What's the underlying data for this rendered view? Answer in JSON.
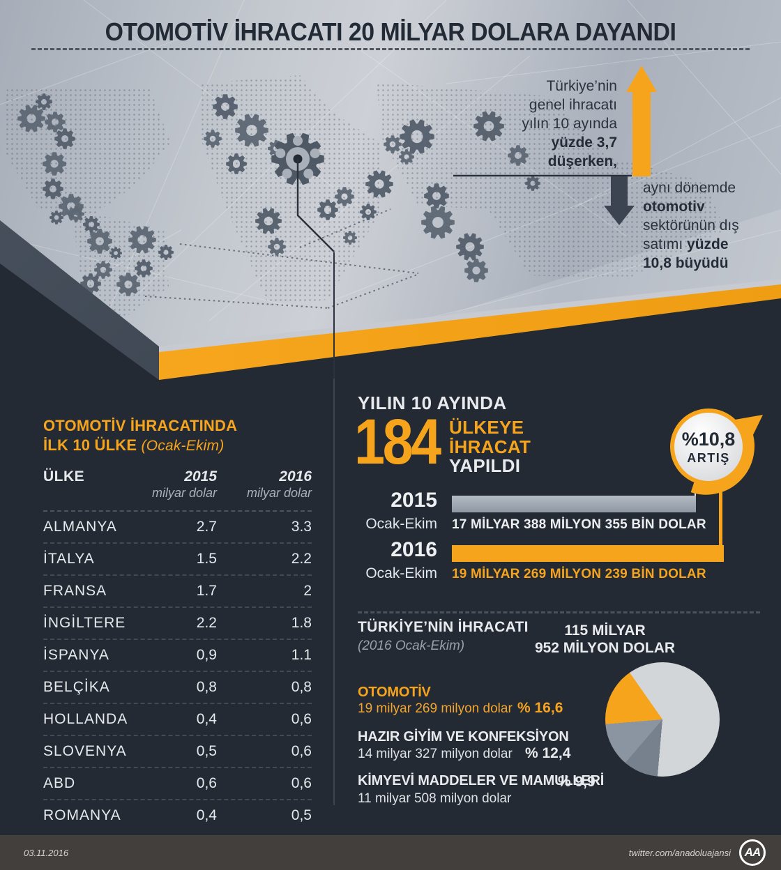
{
  "title": "OTOMOTİV İHRACATI 20 MİLYAR DOLARA DAYANDI",
  "colors": {
    "accent_orange": "#F7A41D",
    "background_navy": "#232A34",
    "surface_gray": "#BFC4CC",
    "bar_gray": "#9AA4B0",
    "footer_brown": "#423F3C"
  },
  "annotations": {
    "general": {
      "l1": "Türkiye’nin",
      "l2": "genel ihracatı",
      "l3": "yılın 10 ayında",
      "l4": "yüzde 3,7",
      "l5": "düşerken,"
    },
    "auto": {
      "l1": "aynı dönemde",
      "l2": "otomotiv",
      "l3": "sektörünün dış",
      "l4a": "satımı ",
      "l4b": "yüzde",
      "l5": "10,8 büyüdü"
    }
  },
  "top10": {
    "title_line1": "OTOMOTİV İHRACATINDA",
    "title_line2": "İLK 10 ÜLKE ",
    "title_note": "(Ocak-Ekim)",
    "col_country": "ÜLKE",
    "col_2015": "2015",
    "col_2016": "2016",
    "col_unit": "milyar dolar",
    "rows": [
      {
        "country": "ALMANYA",
        "v2015": "2.7",
        "v2016": "3.3"
      },
      {
        "country": "İTALYA",
        "v2015": "1.5",
        "v2016": "2.2"
      },
      {
        "country": "FRANSA",
        "v2015": "1.7",
        "v2016": "2"
      },
      {
        "country": "İNGİLTERE",
        "v2015": "2.2",
        "v2016": "1.8"
      },
      {
        "country": "İSPANYA",
        "v2015": "0,9",
        "v2016": "1.1"
      },
      {
        "country": "BELÇİKA",
        "v2015": "0,8",
        "v2016": "0,8"
      },
      {
        "country": "HOLLANDA",
        "v2015": "0,4",
        "v2016": "0,6"
      },
      {
        "country": "SLOVENYA",
        "v2015": "0,5",
        "v2016": "0,6"
      },
      {
        "country": "ABD",
        "v2015": "0,6",
        "v2016": "0,6"
      },
      {
        "country": "ROMANYA",
        "v2015": "0,4",
        "v2016": "0,5"
      }
    ]
  },
  "countries_export": {
    "kicker": "YILIN 10 AYINDA",
    "number": "184",
    "word1": "ÜLKEYE",
    "word2": "İHRACAT",
    "word3": "YAPILDI",
    "badge": {
      "percent": "%10,8",
      "label": "ARTIŞ"
    },
    "bars": [
      {
        "year": "2015",
        "period": "Ocak-Ekim",
        "label": "17 MİLYAR 388 MİLYON 355 BİN DOLAR"
      },
      {
        "year": "2016",
        "period": "Ocak-Ekim",
        "label": "19 MİLYAR 269 MİLYON 239 BİN DOLAR"
      }
    ]
  },
  "turkey_exports": {
    "title": "TÜRKİYE’NİN İHRACATI",
    "subtitle": "(2016 Ocak-Ekim)",
    "total_line1": "115 MİLYAR",
    "total_line2": "952 MİLYON DOLAR",
    "sectors": [
      {
        "name": "OTOMOTİV",
        "amount": "19 milyar 269 milyon dolar",
        "percent": "% 16,6"
      },
      {
        "name": "HAZIR GİYİM VE KONFEKSİYON",
        "amount": "14 milyar 327 milyon dolar",
        "percent": "% 12,4"
      },
      {
        "name": "KİMYEVİ MADDELER VE MAMULLERİ",
        "amount": "11 milyar 508 milyon dolar",
        "percent": "% 9,9"
      }
    ]
  },
  "footer": {
    "date": "03.11.2016",
    "twitter": "twitter.com/anadoluajansi",
    "logo_text": "AA"
  },
  "chart_data": [
    {
      "type": "table",
      "title": "OTOMOTİV İHRACATINDA İLK 10 ÜLKE (Ocak-Ekim)",
      "unit": "milyar dolar",
      "columns": [
        "ÜLKE",
        "2015",
        "2016"
      ],
      "rows": [
        [
          "ALMANYA",
          2.7,
          3.3
        ],
        [
          "İTALYA",
          1.5,
          2.2
        ],
        [
          "FRANSA",
          1.7,
          2.0
        ],
        [
          "İNGİLTERE",
          2.2,
          1.8
        ],
        [
          "İSPANYA",
          0.9,
          1.1
        ],
        [
          "BELÇİKA",
          0.8,
          0.8
        ],
        [
          "HOLLANDA",
          0.4,
          0.6
        ],
        [
          "SLOVENYA",
          0.5,
          0.6
        ],
        [
          "ABD",
          0.6,
          0.6
        ],
        [
          "ROMANYA",
          0.4,
          0.5
        ]
      ]
    },
    {
      "type": "bar",
      "orientation": "horizontal",
      "title": "YILIN 10 AYINDA 184 ÜLKEYE İHRACAT YAPILDI",
      "categories": [
        "2015 Ocak-Ekim",
        "2016 Ocak-Ekim"
      ],
      "values": [
        17.388355,
        19.269239
      ],
      "unit": "milyar dolar",
      "value_labels": [
        "17 MİLYAR 388 MİLYON 355 BİN DOLAR",
        "19 MİLYAR 269 MİLYON 239 BİN DOLAR"
      ],
      "annotation": "%10,8 ARTIŞ",
      "series_colors": [
        "#9AA4B0",
        "#F7A41D"
      ]
    },
    {
      "type": "pie",
      "title": "TÜRKİYE’NİN İHRACATI (2016 Ocak-Ekim)",
      "total_label": "115 MİLYAR 952 MİLYON DOLAR",
      "total_value_billion_usd": 115.952,
      "start_angle_deg": 325,
      "clockwise": true,
      "slices": [
        {
          "label": "",
          "pct": 61.1,
          "color": "#d3d6d9"
        },
        {
          "label": "KİMYEVİ MADDELER VE MAMULLERİ",
          "pct": 9.9,
          "color": "#77818d"
        },
        {
          "label": "HAZIR GİYİM VE KONFEKSİYON",
          "pct": 12.4,
          "color": "#8b95a2"
        },
        {
          "label": "OTOMOTİV",
          "pct": 16.6,
          "color": "#F7A41D"
        }
      ]
    }
  ]
}
